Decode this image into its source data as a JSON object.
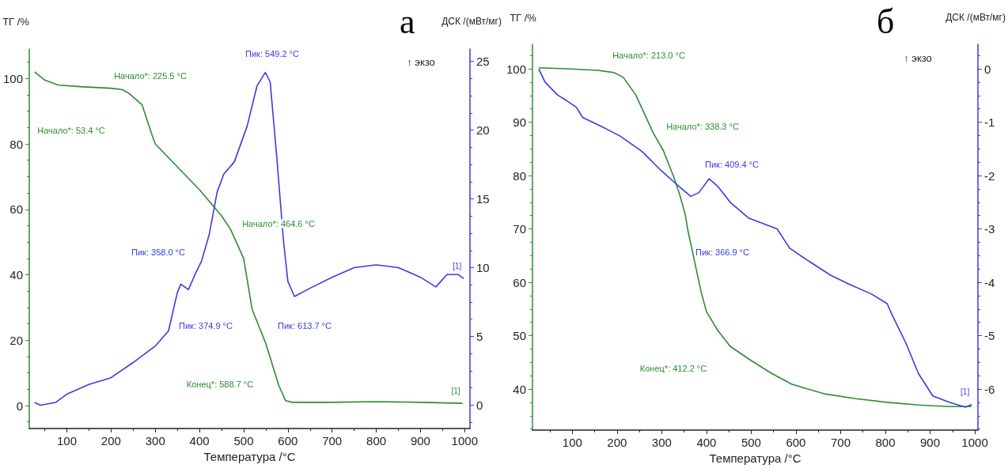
{
  "chart_data": [
    {
      "type": "line",
      "title": "а",
      "xlabel": "Температура /°C",
      "ylabel": "ТГ /%",
      "y2label": "ДСК /(мВт/мг)",
      "marker": "none",
      "xlim": [
        15,
        1012
      ],
      "xticks": [
        100,
        200,
        300,
        400,
        500,
        600,
        700,
        800,
        900,
        1000
      ],
      "ylim": [
        -7,
        109
      ],
      "yticks": [
        0,
        20,
        40,
        60,
        80,
        100
      ],
      "y2lim": [
        -1.7,
        25.9
      ],
      "y2ticks": [
        0,
        5,
        10,
        15,
        20,
        25
      ],
      "series": [
        {
          "name": "[1]",
          "color": "#2f8a34",
          "x": [
            27,
            50,
            80,
            130,
            200,
            225,
            240,
            270,
            293,
            300,
            350,
            400,
            450,
            470,
            500,
            519,
            550,
            580,
            595,
            610,
            700,
            800,
            900,
            995
          ],
          "values": [
            102,
            99.5,
            98,
            97.5,
            97,
            96.6,
            95.5,
            92,
            82.6,
            80,
            73,
            66,
            58,
            54,
            45,
            29.5,
            19,
            6,
            1.5,
            1,
            1,
            1.2,
            1,
            0.7
          ]
        },
        {
          "name": "[1]",
          "color": "#3b3be0",
          "axis": "y2",
          "x": [
            27,
            40,
            75,
            100,
            150,
            200,
            250,
            300,
            330,
            350,
            358,
            375,
            390,
            405,
            422,
            440,
            455,
            479,
            508,
            530,
            549,
            560,
            575,
            590,
            600,
            615,
            650,
            700,
            750,
            800,
            850,
            900,
            935,
            960,
            985,
            998
          ],
          "values": [
            0.2,
            0,
            0.2,
            0.8,
            1.5,
            2.0,
            3.1,
            4.3,
            5.4,
            8.2,
            8.8,
            8.4,
            9.5,
            10.5,
            12.4,
            15.5,
            16.8,
            17.7,
            20.3,
            23.2,
            24.2,
            23.5,
            18,
            12,
            9,
            7.9,
            8.5,
            9.3,
            10,
            10.2,
            10,
            9.3,
            8.6,
            9.5,
            9.5,
            9.2
          ]
        }
      ],
      "annotations": [
        "Начало*: 225.5 °C",
        "Начало*: 53.4 °C",
        "Пик: 549.2 °C",
        "↑ экзо",
        "Начало*: 464.6 °C",
        "Пик: 358.0 °C",
        "Пик: 374.9 °C",
        "Пик: 613.7 °C",
        "Конец*: 588.7 °C"
      ]
    },
    {
      "type": "line",
      "title": "б",
      "xlabel": "Температура /°C",
      "ylabel": "ТГ /%",
      "y2label": "ДСК /(мВт/мг)",
      "marker": "none",
      "xlim": [
        11,
        1007
      ],
      "xticks": [
        100,
        200,
        300,
        400,
        500,
        600,
        700,
        800,
        900,
        1000
      ],
      "ylim": [
        32.3,
        104.6
      ],
      "yticks": [
        40,
        50,
        60,
        70,
        80,
        90,
        100
      ],
      "y2lim": [
        -6.77,
        0.46
      ],
      "y2ticks": [
        -6,
        -5,
        -4,
        -3,
        -2,
        -1,
        0
      ],
      "series": [
        {
          "color": "#2f8a34",
          "x": [
            25,
            88,
            158,
            193,
            214,
            242,
            281,
            304,
            327,
            341,
            353,
            358,
            388,
            400,
            425,
            453,
            495,
            544,
            591,
            663,
            734,
            804,
            874,
            944,
            993
          ],
          "values": [
            100.2,
            100,
            99.7,
            99.3,
            98.4,
            95.1,
            88,
            84.6,
            79.7,
            76.2,
            72.5,
            69.9,
            58.2,
            54.5,
            51,
            48,
            45.6,
            43,
            40.9,
            39.1,
            38.2,
            37.5,
            37,
            36.7,
            36.7
          ]
        },
        {
          "name": "[1]",
          "color": "#3b3be0",
          "axis": "y2",
          "x": [
            25,
            39,
            67,
            88,
            109,
            123,
            158,
            207,
            256,
            299,
            334,
            365,
            383,
            406,
            425,
            453,
            495,
            558,
            586,
            628,
            678,
            720,
            769,
            804,
            815,
            846,
            874,
            906,
            944,
            979,
            993
          ],
          "values": [
            0,
            -0.25,
            -0.49,
            -0.6,
            -0.72,
            -0.91,
            -1.05,
            -1.26,
            -1.55,
            -1.91,
            -2.17,
            -2.39,
            -2.32,
            -2.06,
            -2.2,
            -2.5,
            -2.8,
            -3,
            -3.36,
            -3.6,
            -3.87,
            -4.04,
            -4.22,
            -4.4,
            -4.61,
            -5.14,
            -5.71,
            -6.13,
            -6.25,
            -6.34,
            -6.29
          ]
        }
      ],
      "annotations": [
        "Начало*: 213.0 °C",
        "Начало*: 338.3 °C",
        "Пик: 409.4 °C",
        "Пик: 366.9 °C",
        "Конец*: 412.2 °C",
        "↑ экзо"
      ]
    }
  ]
}
